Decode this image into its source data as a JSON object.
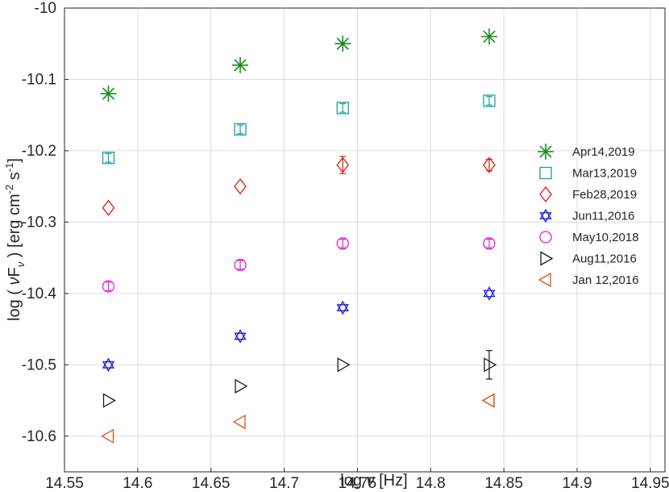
{
  "chart_data": {
    "type": "scatter",
    "xlim": [
      14.55,
      14.96
    ],
    "ylim": [
      -10.65,
      -10.0
    ],
    "x_ticks": [
      14.55,
      14.6,
      14.65,
      14.7,
      14.75,
      14.8,
      14.85,
      14.9,
      14.95
    ],
    "x_tick_labels": [
      "14.55",
      "14.6",
      "14.65",
      "14.7",
      "14.75",
      "14.8",
      "14.85",
      "14.9",
      "14.95"
    ],
    "y_ticks": [
      -10.6,
      -10.5,
      -10.4,
      -10.3,
      -10.2,
      -10.1,
      -10.0
    ],
    "y_tick_labels": [
      "-10.6",
      "-10.5",
      "-10.4",
      "-10.3",
      "-10.2",
      "-10.1",
      "-10"
    ],
    "xlabel": {
      "prefix": "log",
      "symbol": "ν",
      "unit": "[Hz]"
    },
    "ylabel": {
      "prefix": "log ( ",
      "symbol": "ν",
      "f": "F",
      "f_sub": "ν",
      "after": " ) [erg cm",
      "exp1": "-2",
      "mid": " s",
      "exp2": "-1",
      "end": "]"
    },
    "grid": true,
    "legend_position": "right",
    "series": [
      {
        "name": "Apr14,2019",
        "marker": "asterisk",
        "color": "#1a8a1a",
        "x": [
          14.58,
          14.67,
          14.74,
          14.84
        ],
        "y": [
          -10.12,
          -10.08,
          -10.05,
          -10.04
        ],
        "err": [
          0,
          0,
          0,
          0
        ]
      },
      {
        "name": "Mar13,2019",
        "marker": "square",
        "color": "#1a9f9f",
        "x": [
          14.58,
          14.67,
          14.74,
          14.84
        ],
        "y": [
          -10.21,
          -10.17,
          -10.14,
          -10.13
        ],
        "err": [
          0.006,
          0.006,
          0.006,
          0.006
        ]
      },
      {
        "name": "Feb28,2019",
        "marker": "diamond",
        "color": "#e0190f",
        "x": [
          14.58,
          14.67,
          14.74,
          14.84
        ],
        "y": [
          -10.28,
          -10.25,
          -10.22,
          -10.22
        ],
        "err": [
          0,
          0,
          0.012,
          0.008
        ]
      },
      {
        "name": "Jun11,2016",
        "marker": "hexagram",
        "color": "#1a1ad6",
        "x": [
          14.58,
          14.67,
          14.74,
          14.84
        ],
        "y": [
          -10.5,
          -10.46,
          -10.42,
          -10.4
        ],
        "err": [
          0,
          0,
          0,
          0
        ]
      },
      {
        "name": "May10,2018",
        "marker": "circle",
        "color": "#e01fe0",
        "x": [
          14.58,
          14.67,
          14.74,
          14.84
        ],
        "y": [
          -10.39,
          -10.36,
          -10.33,
          -10.33
        ],
        "err": [
          0.006,
          0.006,
          0.006,
          0.006
        ]
      },
      {
        "name": "Aug11,2016",
        "marker": "triangle-right",
        "color": "#1a1a1a",
        "x": [
          14.58,
          14.67,
          14.74,
          14.84
        ],
        "y": [
          -10.55,
          -10.53,
          -10.5,
          -10.5
        ],
        "err": [
          0,
          0,
          0,
          0.02
        ]
      },
      {
        "name": "Jan 12,2016",
        "marker": "triangle-left",
        "color": "#d95319",
        "x": [
          14.58,
          14.67,
          14.84,
          14.84
        ],
        "y": [
          -10.6,
          -10.58,
          -10.55,
          -10.55
        ],
        "err": [
          0,
          0,
          0,
          0
        ]
      }
    ]
  }
}
